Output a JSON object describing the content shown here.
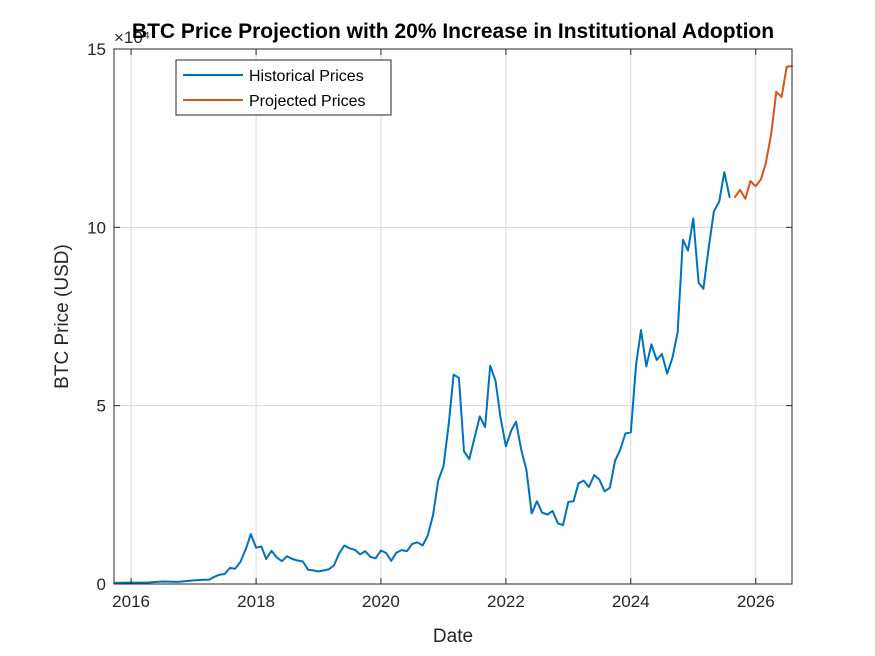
{
  "chart_data": {
    "type": "line",
    "title": "BTC Price Projection with 20% Increase in Institutional Adoption",
    "xlabel": "Date",
    "ylabel": "BTC Price (USD)",
    "y_exponent_label": "×10⁴",
    "y_multiplier": 10000,
    "xlim": [
      "2015-09-23",
      "2026-08-01"
    ],
    "ylim": [
      0,
      15
    ],
    "xticks": [
      "2016",
      "2018",
      "2020",
      "2022",
      "2024",
      "2026"
    ],
    "yticks": [
      "0",
      "5",
      "10",
      "15"
    ],
    "grid": true,
    "legend_position": "top-left",
    "series": [
      {
        "name": "Historical Prices",
        "color": "#0072BD",
        "points": [
          [
            "2015-10-01",
            0.03
          ],
          [
            "2016-01-01",
            0.04
          ],
          [
            "2016-04-01",
            0.04
          ],
          [
            "2016-07-01",
            0.07
          ],
          [
            "2016-10-01",
            0.06
          ],
          [
            "2017-01-01",
            0.1
          ],
          [
            "2017-03-01",
            0.12
          ],
          [
            "2017-04-01",
            0.12
          ],
          [
            "2017-05-01",
            0.2
          ],
          [
            "2017-06-01",
            0.26
          ],
          [
            "2017-07-01",
            0.28
          ],
          [
            "2017-08-01",
            0.45
          ],
          [
            "2017-09-01",
            0.43
          ],
          [
            "2017-10-01",
            0.62
          ],
          [
            "2017-11-01",
            0.97
          ],
          [
            "2017-12-01",
            1.4
          ],
          [
            "2018-01-01",
            1.02
          ],
          [
            "2018-02-01",
            1.05
          ],
          [
            "2018-03-01",
            0.7
          ],
          [
            "2018-04-01",
            0.93
          ],
          [
            "2018-05-01",
            0.75
          ],
          [
            "2018-06-01",
            0.64
          ],
          [
            "2018-07-01",
            0.78
          ],
          [
            "2018-08-01",
            0.7
          ],
          [
            "2018-09-01",
            0.66
          ],
          [
            "2018-10-01",
            0.63
          ],
          [
            "2018-11-01",
            0.4
          ],
          [
            "2018-12-01",
            0.38
          ],
          [
            "2019-01-01",
            0.35
          ],
          [
            "2019-02-01",
            0.38
          ],
          [
            "2019-03-01",
            0.41
          ],
          [
            "2019-04-01",
            0.52
          ],
          [
            "2019-05-01",
            0.85
          ],
          [
            "2019-06-01",
            1.08
          ],
          [
            "2019-07-01",
            1.0
          ],
          [
            "2019-08-01",
            0.96
          ],
          [
            "2019-09-01",
            0.83
          ],
          [
            "2019-10-01",
            0.92
          ],
          [
            "2019-11-01",
            0.76
          ],
          [
            "2019-12-01",
            0.72
          ],
          [
            "2020-01-01",
            0.94
          ],
          [
            "2020-02-01",
            0.87
          ],
          [
            "2020-03-01",
            0.65
          ],
          [
            "2020-04-01",
            0.88
          ],
          [
            "2020-05-01",
            0.95
          ],
          [
            "2020-06-01",
            0.92
          ],
          [
            "2020-07-01",
            1.12
          ],
          [
            "2020-08-01",
            1.17
          ],
          [
            "2020-09-01",
            1.08
          ],
          [
            "2020-10-01",
            1.36
          ],
          [
            "2020-11-01",
            1.94
          ],
          [
            "2020-12-01",
            2.9
          ],
          [
            "2021-01-01",
            3.3
          ],
          [
            "2021-02-01",
            4.5
          ],
          [
            "2021-03-01",
            5.87
          ],
          [
            "2021-04-01",
            5.78
          ],
          [
            "2021-05-01",
            3.72
          ],
          [
            "2021-06-01",
            3.5
          ],
          [
            "2021-07-01",
            4.1
          ],
          [
            "2021-08-01",
            4.7
          ],
          [
            "2021-09-01",
            4.4
          ],
          [
            "2021-10-01",
            6.12
          ],
          [
            "2021-11-01",
            5.7
          ],
          [
            "2021-12-01",
            4.65
          ],
          [
            "2022-01-01",
            3.86
          ],
          [
            "2022-02-01",
            4.3
          ],
          [
            "2022-03-01",
            4.55
          ],
          [
            "2022-04-01",
            3.76
          ],
          [
            "2022-05-01",
            3.2
          ],
          [
            "2022-06-01",
            1.98
          ],
          [
            "2022-07-01",
            2.32
          ],
          [
            "2022-08-01",
            2.0
          ],
          [
            "2022-09-01",
            1.95
          ],
          [
            "2022-10-01",
            2.05
          ],
          [
            "2022-11-01",
            1.7
          ],
          [
            "2022-12-01",
            1.65
          ],
          [
            "2023-01-01",
            2.3
          ],
          [
            "2023-02-01",
            2.32
          ],
          [
            "2023-03-01",
            2.82
          ],
          [
            "2023-04-01",
            2.9
          ],
          [
            "2023-05-01",
            2.72
          ],
          [
            "2023-06-01",
            3.05
          ],
          [
            "2023-07-01",
            2.93
          ],
          [
            "2023-08-01",
            2.6
          ],
          [
            "2023-09-01",
            2.7
          ],
          [
            "2023-10-01",
            3.45
          ],
          [
            "2023-11-01",
            3.77
          ],
          [
            "2023-12-01",
            4.22
          ],
          [
            "2024-01-01",
            4.25
          ],
          [
            "2024-02-01",
            6.15
          ],
          [
            "2024-03-01",
            7.12
          ],
          [
            "2024-04-01",
            6.1
          ],
          [
            "2024-05-01",
            6.72
          ],
          [
            "2024-06-01",
            6.28
          ],
          [
            "2024-07-01",
            6.45
          ],
          [
            "2024-08-01",
            5.9
          ],
          [
            "2024-09-01",
            6.35
          ],
          [
            "2024-10-01",
            7.05
          ],
          [
            "2024-11-01",
            9.65
          ],
          [
            "2024-12-01",
            9.35
          ],
          [
            "2025-01-01",
            10.25
          ],
          [
            "2025-02-01",
            8.45
          ],
          [
            "2025-03-01",
            8.28
          ],
          [
            "2025-04-01",
            9.43
          ],
          [
            "2025-05-01",
            10.45
          ],
          [
            "2025-06-01",
            10.72
          ],
          [
            "2025-07-01",
            11.55
          ],
          [
            "2025-08-01",
            10.85
          ]
        ]
      },
      {
        "name": "Projected Prices",
        "color": "#D95319",
        "points": [
          [
            "2025-09-01",
            10.85
          ],
          [
            "2025-10-01",
            11.05
          ],
          [
            "2025-11-01",
            10.8
          ],
          [
            "2025-12-01",
            11.3
          ],
          [
            "2026-01-01",
            11.15
          ],
          [
            "2026-02-01",
            11.35
          ],
          [
            "2026-03-01",
            11.8
          ],
          [
            "2026-04-01",
            12.6
          ],
          [
            "2026-05-01",
            13.8
          ],
          [
            "2026-06-01",
            13.65
          ],
          [
            "2026-07-01",
            14.5
          ],
          [
            "2026-08-01",
            14.52
          ]
        ]
      }
    ]
  }
}
